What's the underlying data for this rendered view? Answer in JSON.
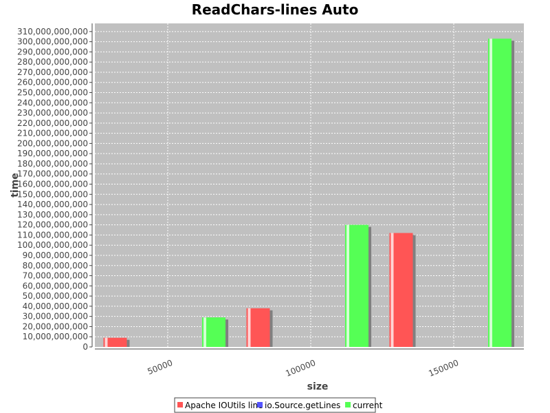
{
  "chart_data": {
    "type": "bar",
    "title": "ReadChars-lines Auto",
    "xlabel": "size",
    "ylabel": "time",
    "categories": [
      "50000",
      "100000",
      "150000"
    ],
    "series": [
      {
        "name": "Apache IOUtils line",
        "color": "#ff5555",
        "values": [
          9000000000,
          38000000000,
          112000000000
        ]
      },
      {
        "name": "io.Source.getLines",
        "color": "#5555ff",
        "values": [
          null,
          null,
          null
        ]
      },
      {
        "name": "current",
        "color": "#55ff55",
        "values": [
          29000000000,
          120000000000,
          303000000000
        ]
      }
    ],
    "ylim": [
      0,
      318000000000
    ],
    "ytick_step": 10000000000,
    "grid": true,
    "legend_position": "bottom",
    "plot_background": "#c0c0c0"
  }
}
